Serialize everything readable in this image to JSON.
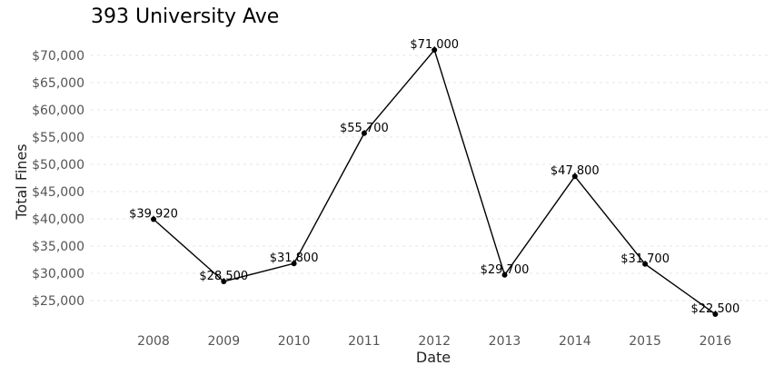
{
  "chart_data": {
    "type": "line",
    "title": "393 University Ave",
    "xlabel": "Date",
    "ylabel": "Total Fines",
    "categories": [
      "2008",
      "2009",
      "2010",
      "2011",
      "2012",
      "2013",
      "2014",
      "2015",
      "2016"
    ],
    "values": [
      39920,
      28500,
      31800,
      55700,
      71000,
      29700,
      47800,
      31700,
      22500
    ],
    "data_labels": [
      "$39,920",
      "$28,500",
      "$31,800",
      "$55,700",
      "$71,000",
      "$29,700",
      "$47,800",
      "$31,700",
      "$22,500"
    ],
    "yticks": [
      25000,
      30000,
      35000,
      40000,
      45000,
      50000,
      55000,
      60000,
      65000,
      70000
    ],
    "ytick_labels": [
      "$25,000",
      "$30,000",
      "$35,000",
      "$40,000",
      "$45,000",
      "$50,000",
      "$55,000",
      "$60,000",
      "$65,000",
      "$70,000"
    ],
    "ylim": [
      22500,
      71000
    ],
    "grid": true,
    "legend": false,
    "line_color": "#000000"
  }
}
